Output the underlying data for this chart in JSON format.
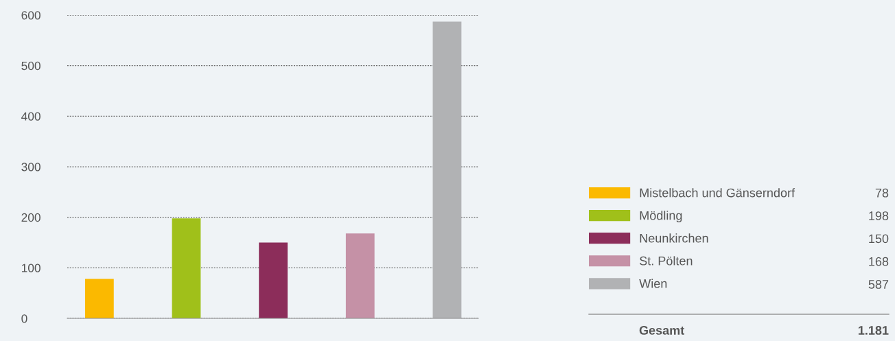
{
  "chart_data": {
    "type": "bar",
    "categories": [
      null,
      null,
      null,
      null,
      null
    ],
    "series": [
      {
        "name": "Mistelbach und Gänserndorf",
        "color": "#fbb900",
        "values": [
          78,
          null,
          null,
          null,
          null
        ]
      },
      {
        "name": "Mödling",
        "color": "#a0c01a",
        "values": [
          null,
          198,
          null,
          null,
          null
        ]
      },
      {
        "name": "Neunkirchen",
        "color": "#8c2d5a",
        "values": [
          null,
          null,
          150,
          null,
          null
        ]
      },
      {
        "name": "St. Pölten",
        "color": "#c591a6",
        "values": [
          null,
          null,
          null,
          168,
          null
        ]
      },
      {
        "name": "Wien",
        "color": "#b1b2b4",
        "values": [
          null,
          null,
          null,
          null,
          587
        ]
      }
    ],
    "ylim": [
      0,
      600
    ],
    "yticks": [
      0,
      100,
      200,
      300,
      400,
      500,
      600
    ],
    "grid": "y",
    "legend": "bottom right",
    "tick_labels": "y",
    "annotations": [
      "78",
      "198",
      "150",
      "168",
      "587",
      "Gesamt",
      "1.181"
    ]
  }
}
